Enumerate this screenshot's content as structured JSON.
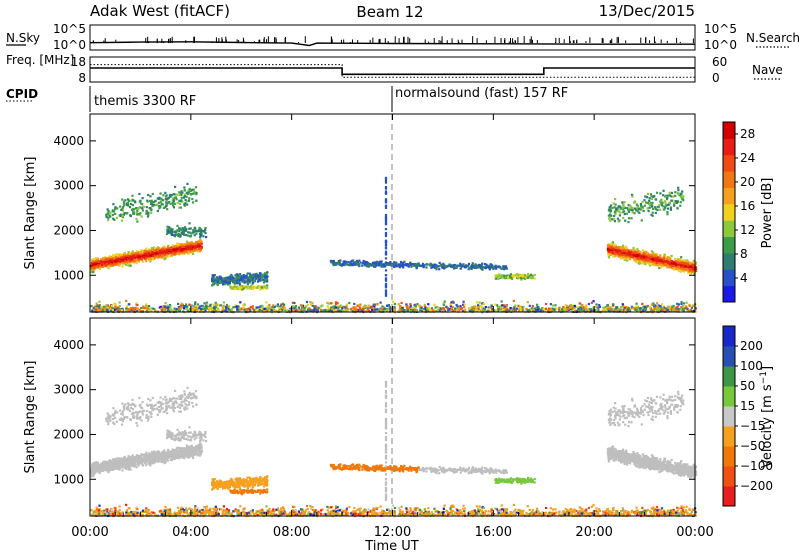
{
  "header": {
    "left": "Adak West (fitACF)",
    "center": "Beam 12",
    "right": "13/Dec/2015"
  },
  "colors": {
    "power": [
      "#1a1ae6",
      "#2850c8",
      "#2e7d6e",
      "#3c9c4a",
      "#8cc83c",
      "#f0d21e",
      "#f5a01e",
      "#f07814",
      "#f04b14",
      "#e61e14",
      "#d20000"
    ],
    "velocity": [
      "#e61e1e",
      "#f05014",
      "#f0780a",
      "#f5a01e",
      "#c8c8c8",
      "#78c83c",
      "#3c9646",
      "#2850b4",
      "#1a28c8"
    ],
    "ground_scatter": "#bebebe"
  },
  "chart_data": [
    {
      "type": "line",
      "panel": "noise-search",
      "ylabel_left": "N.Sky",
      "ylabel_right": "N.Search",
      "left_ticks": [
        "10^5",
        "10^0"
      ],
      "right_ticks": [
        "10^5",
        "10^0"
      ],
      "y_scale": "log",
      "ylim": [
        1,
        100000
      ],
      "x": [
        0,
        2,
        4,
        6,
        8,
        8.7,
        9.0,
        12,
        16,
        20,
        24
      ],
      "sky": [
        18,
        25,
        30,
        20,
        15,
        4,
        15,
        12,
        10,
        8,
        8
      ]
    },
    {
      "type": "line",
      "panel": "frequency-nave",
      "ylabel_left": "Freq. [MHz]",
      "ylabel_right": "Nave",
      "left_ticks": [
        "18",
        "8"
      ],
      "right_ticks": [
        "60",
        "0"
      ],
      "ylim_left": [
        8,
        18
      ],
      "ylim_right": [
        0,
        60
      ],
      "freq_x": [
        0,
        10,
        10,
        18,
        18,
        24
      ],
      "freq_y": [
        13.7,
        13.7,
        10.7,
        10.7,
        13.7,
        13.7
      ]
    },
    {
      "type": "table",
      "panel": "cpid",
      "label": "CPID",
      "programs": [
        {
          "start": 0,
          "end": 12,
          "label": "themis 3300 RF"
        },
        {
          "start": 12,
          "end": 24,
          "label": "normalsound (fast) 157 RF"
        }
      ]
    },
    {
      "type": "heatmap",
      "panel": "power",
      "ylabel": "Slant Range [km]",
      "yticks": [
        1000,
        2000,
        3000,
        4000
      ],
      "ylim": [
        180,
        4600
      ],
      "colorbar_label": "Power [dB]",
      "colorbar_ticks": [
        4,
        8,
        12,
        16,
        20,
        24,
        28
      ],
      "colorbar_range": [
        0,
        30
      ]
    },
    {
      "type": "heatmap",
      "panel": "velocity",
      "ylabel": "Slant Range [km]",
      "yticks": [
        1000,
        2000,
        3000,
        4000
      ],
      "ylim": [
        180,
        4600
      ],
      "colorbar_label": "Velocity [m s^-1]",
      "colorbar_ticks": [
        -200,
        -100,
        -50,
        -15,
        15,
        50,
        100,
        200
      ]
    }
  ],
  "xaxis": {
    "label": "Time UT",
    "ticks": [
      "00:00",
      "04:00",
      "08:00",
      "12:00",
      "16:00",
      "20:00",
      "00:00"
    ],
    "range_hours": [
      0,
      24
    ]
  }
}
